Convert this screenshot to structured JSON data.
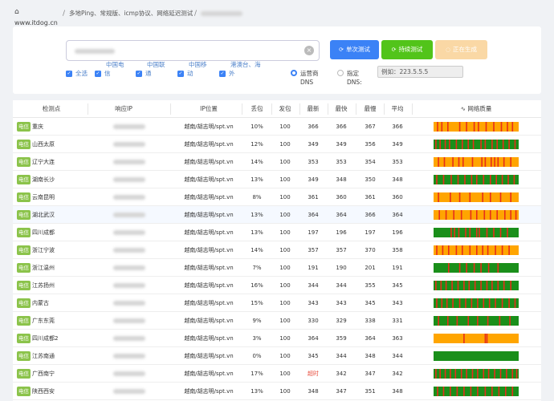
{
  "header": {
    "home_icon": "home-icon",
    "site": "www.itdog.cn",
    "separator": "/",
    "title": "多地Ping、常规版、icmp协议、网络延迟测试"
  },
  "search": {
    "value": ""
  },
  "buttons": {
    "single": "单次测试",
    "continuous": "持续测试",
    "running": "正在生成"
  },
  "filters": {
    "all": "全选",
    "telecom": [
      "中国电",
      "信"
    ],
    "unicom": [
      "中国联",
      "通"
    ],
    "mobile": [
      "中国移",
      "动"
    ],
    "overseas": [
      "港澳台、海",
      "外"
    ]
  },
  "dns": {
    "operator": "运营商 DNS",
    "operator_lines": [
      "运营商",
      "DNS"
    ],
    "custom_lines": [
      "指定",
      "DNS:"
    ],
    "placeholder": "例如：223.5.5.5"
  },
  "table": {
    "headers": [
      "检测点",
      "响应IP",
      "IP位置",
      "丢包",
      "发包",
      "最新",
      "最快",
      "最慢",
      "平均",
      "网络质量"
    ],
    "quality_icon": "pulse-icon",
    "rows": [
      {
        "isp": "电信",
        "node": "重庆",
        "loc": "越南/胡志明/spt.vn",
        "loss": "10%",
        "sent": "100",
        "latest": "366",
        "fast": "366",
        "slow": "367",
        "avg": "366",
        "base": "#ffa500",
        "q": [
          0.04,
          0.09,
          0.16,
          0.3,
          0.38,
          0.47,
          0.52,
          0.61,
          0.7,
          0.79,
          0.86,
          0.92
        ]
      },
      {
        "isp": "电信",
        "node": "山西太原",
        "loc": "越南/胡志明/spt.vn",
        "loss": "12%",
        "sent": "100",
        "latest": "349",
        "fast": "349",
        "slow": "356",
        "avg": "349",
        "base": "#1a8f1a",
        "q": [
          0.02,
          0.07,
          0.13,
          0.18,
          0.26,
          0.33,
          0.4,
          0.46,
          0.55,
          0.6,
          0.68,
          0.74,
          0.81,
          0.88,
          0.95
        ]
      },
      {
        "isp": "电信",
        "node": "辽宁大连",
        "loc": "越南/胡志明/spt.vn",
        "loss": "14%",
        "sent": "100",
        "latest": "353",
        "fast": "353",
        "slow": "354",
        "avg": "353",
        "base": "#ffa500",
        "q": [
          0.05,
          0.12,
          0.22,
          0.29,
          0.34,
          0.45,
          0.56,
          0.6,
          0.67,
          0.71,
          0.75,
          0.82,
          0.9
        ]
      },
      {
        "isp": "电信",
        "node": "湖南长沙",
        "loc": "越南/胡志明/spt.vn",
        "loss": "13%",
        "sent": "100",
        "latest": "349",
        "fast": "348",
        "slow": "350",
        "avg": "348",
        "base": "#1a8f1a",
        "q": [
          0.03,
          0.11,
          0.2,
          0.28,
          0.36,
          0.44,
          0.5,
          0.58,
          0.66,
          0.73,
          0.8,
          0.87,
          0.94
        ]
      },
      {
        "isp": "电信",
        "node": "云南昆明",
        "loc": "越南/胡志明/spt.vn",
        "loss": "8%",
        "sent": "100",
        "latest": "361",
        "fast": "360",
        "slow": "361",
        "avg": "360",
        "base": "#ffa500",
        "q": [
          0.05,
          0.19,
          0.3,
          0.42,
          0.57,
          0.66,
          0.78,
          0.9
        ]
      },
      {
        "isp": "电信",
        "node": "湖北武汉",
        "loc": "越南/胡志明/spt.vn",
        "loss": "13%",
        "sent": "100",
        "latest": "364",
        "fast": "364",
        "slow": "366",
        "avg": "364",
        "base": "#ffa500",
        "q": [
          0.06,
          0.14,
          0.23,
          0.32,
          0.43,
          0.5,
          0.59,
          0.66,
          0.74,
          0.83,
          0.9,
          0.96
        ]
      },
      {
        "isp": "电信",
        "node": "四川成都",
        "loc": "越南/胡志明/spt.vn",
        "loss": "13%",
        "sent": "100",
        "latest": "197",
        "fast": "196",
        "slow": "197",
        "avg": "196",
        "base": "#1a8f1a",
        "q": [
          0.2,
          0.24,
          0.29,
          0.37,
          0.42,
          0.5,
          0.53,
          0.62,
          0.7,
          0.78,
          0.86
        ]
      },
      {
        "isp": "电信",
        "node": "浙江宁波",
        "loc": "越南/胡志明/spt.vn",
        "loss": "14%",
        "sent": "100",
        "latest": "357",
        "fast": "357",
        "slow": "370",
        "avg": "358",
        "base": "#ffa500",
        "q": [
          0.03,
          0.1,
          0.17,
          0.26,
          0.33,
          0.42,
          0.5,
          0.57,
          0.63,
          0.72,
          0.8,
          0.88
        ]
      },
      {
        "isp": "电信",
        "node": "浙江温州",
        "loc": "越南/胡志明/spt.vn",
        "loss": "7%",
        "sent": "100",
        "latest": "191",
        "fast": "190",
        "slow": "201",
        "avg": "191",
        "base": "#1a8f1a",
        "q": [
          0.17,
          0.3,
          0.38,
          0.47,
          0.55,
          0.64,
          0.75
        ]
      },
      {
        "isp": "电信",
        "node": "江苏扬州",
        "loc": "越南/胡志明/spt.vn",
        "loss": "16%",
        "sent": "100",
        "latest": "344",
        "fast": "344",
        "slow": "355",
        "avg": "345",
        "base": "#1a8f1a",
        "q": [
          0.02,
          0.08,
          0.14,
          0.21,
          0.28,
          0.35,
          0.41,
          0.48,
          0.55,
          0.62,
          0.68,
          0.75,
          0.82,
          0.9
        ]
      },
      {
        "isp": "电信",
        "node": "内蒙古",
        "loc": "越南/胡志明/spt.vn",
        "loss": "15%",
        "sent": "100",
        "latest": "343",
        "fast": "343",
        "slow": "345",
        "avg": "343",
        "base": "#1a8f1a",
        "q": [
          0.03,
          0.09,
          0.15,
          0.22,
          0.3,
          0.37,
          0.44,
          0.51,
          0.58,
          0.65,
          0.72,
          0.8,
          0.88,
          0.95
        ]
      },
      {
        "isp": "电信",
        "node": "广东东莞",
        "loc": "越南/胡志明/spt.vn",
        "loss": "9%",
        "sent": "100",
        "latest": "330",
        "fast": "329",
        "slow": "338",
        "avg": "331",
        "base": "#1a8f1a",
        "q": [
          0.05,
          0.16,
          0.27,
          0.4,
          0.51,
          0.63,
          0.77,
          0.89
        ]
      },
      {
        "isp": "电信",
        "node": "四川成都2",
        "loc": "越南/胡志明/spt.vn",
        "loss": "3%",
        "sent": "100",
        "latest": "364",
        "fast": "359",
        "slow": "364",
        "avg": "363",
        "base": "#ffa500",
        "q": [
          0.35,
          0.6,
          0.62
        ]
      },
      {
        "isp": "电信",
        "node": "江苏南通",
        "loc": "越南/胡志明/spt.vn",
        "loss": "0%",
        "sent": "100",
        "latest": "345",
        "fast": "344",
        "slow": "348",
        "avg": "344",
        "base": "#1a8f1a",
        "q": []
      },
      {
        "isp": "电信",
        "node": "广西南宁",
        "loc": "越南/胡志明/spt.vn",
        "loss": "17%",
        "sent": "100",
        "latest": "超时",
        "fast": "342",
        "slow": "347",
        "avg": "342",
        "base": "#1a8f1a",
        "q": [
          0.02,
          0.07,
          0.13,
          0.19,
          0.25,
          0.32,
          0.38,
          0.45,
          0.51,
          0.58,
          0.64,
          0.71,
          0.78,
          0.85,
          0.92,
          0.97
        ]
      },
      {
        "isp": "电信",
        "node": "陕西西安",
        "loc": "越南/胡志明/spt.vn",
        "loss": "13%",
        "sent": "100",
        "latest": "348",
        "fast": "347",
        "slow": "351",
        "avg": "348",
        "base": "#1a8f1a",
        "q": [
          0.04,
          0.11,
          0.19,
          0.27,
          0.35,
          0.43,
          0.51,
          0.6,
          0.68,
          0.76,
          0.84,
          0.92
        ]
      }
    ]
  },
  "colors": {
    "accent": "#3b82f6",
    "ok": "#1a8f1a",
    "warn": "#ffa500",
    "loss": "#e62e1b",
    "isp_badge": "#8bc34a"
  }
}
